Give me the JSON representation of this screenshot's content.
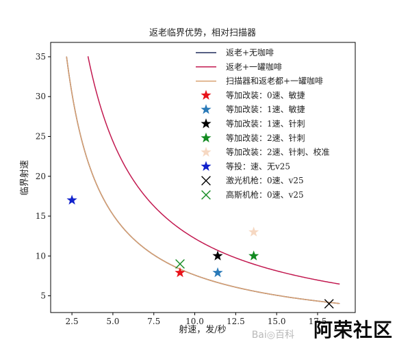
{
  "chart_data": {
    "type": "line",
    "title": "返老临界优势，相对扫描器",
    "xlabel": "射速，发/秒",
    "ylabel": "临界射速",
    "xlim": [
      1.2,
      19.8
    ],
    "ylim": [
      2.9,
      36.8
    ],
    "xticks": [
      2.5,
      5.0,
      7.5,
      10.0,
      12.5,
      15.0,
      17.5
    ],
    "xtick_labels": [
      "2.5",
      "5.0",
      "7.5",
      "10.0",
      "12.5",
      "15.0",
      "17.5"
    ],
    "yticks": [
      5,
      10,
      15,
      20,
      25,
      30,
      35
    ],
    "ytick_labels": [
      "5",
      "10",
      "15",
      "20",
      "25",
      "30",
      "35"
    ],
    "grid": false,
    "legend_position": "top-right",
    "series": [
      {
        "name": "返老+无咖啡",
        "kind": "line",
        "color": "#1f2a5a",
        "k": 76.0,
        "x_start": 2.17,
        "x_end": 18.85
      },
      {
        "name": "返老+一罐咖啡",
        "kind": "line",
        "color": "#c2184f",
        "k": 122.0,
        "x_start": 3.48,
        "x_end": 18.85
      },
      {
        "name": "扫描器和返老都+一罐咖啡",
        "kind": "line",
        "color": "#d9a070",
        "k": 76.0,
        "x_start": 2.17,
        "x_end": 18.85
      }
    ],
    "points": [
      {
        "name": "等加改装：0速、敏捷",
        "marker": "star",
        "color": "#e8131a",
        "x": 9.1,
        "y": 7.9
      },
      {
        "name": "等加改装：1速、敏捷",
        "marker": "star",
        "color": "#2a7ab8",
        "x": 11.4,
        "y": 7.9
      },
      {
        "name": "等加改装：1速、针刺",
        "marker": "star",
        "color": "#000000",
        "x": 11.4,
        "y": 10.0
      },
      {
        "name": "等加改装：2速、针刺",
        "marker": "star",
        "color": "#118a20",
        "x": 13.6,
        "y": 10.0
      },
      {
        "name": "等加改装：2速、针刺、校准",
        "marker": "star",
        "color": "#f6d8c2",
        "x": 13.6,
        "y": 13.0
      },
      {
        "name": "等投：速、无v25",
        "marker": "star",
        "color": "#1122cc",
        "x": 2.5,
        "y": 17.0
      },
      {
        "name": "激光机枪：0速、v25",
        "marker": "x",
        "color": "#000000",
        "x": 18.2,
        "y": 4.0
      },
      {
        "name": "高斯机枪：0速、v25",
        "marker": "x",
        "color": "#118a20",
        "x": 9.1,
        "y": 9.0
      }
    ]
  },
  "watermark": {
    "site": "阿荣社区",
    "baidu": "Bai◎百科"
  }
}
